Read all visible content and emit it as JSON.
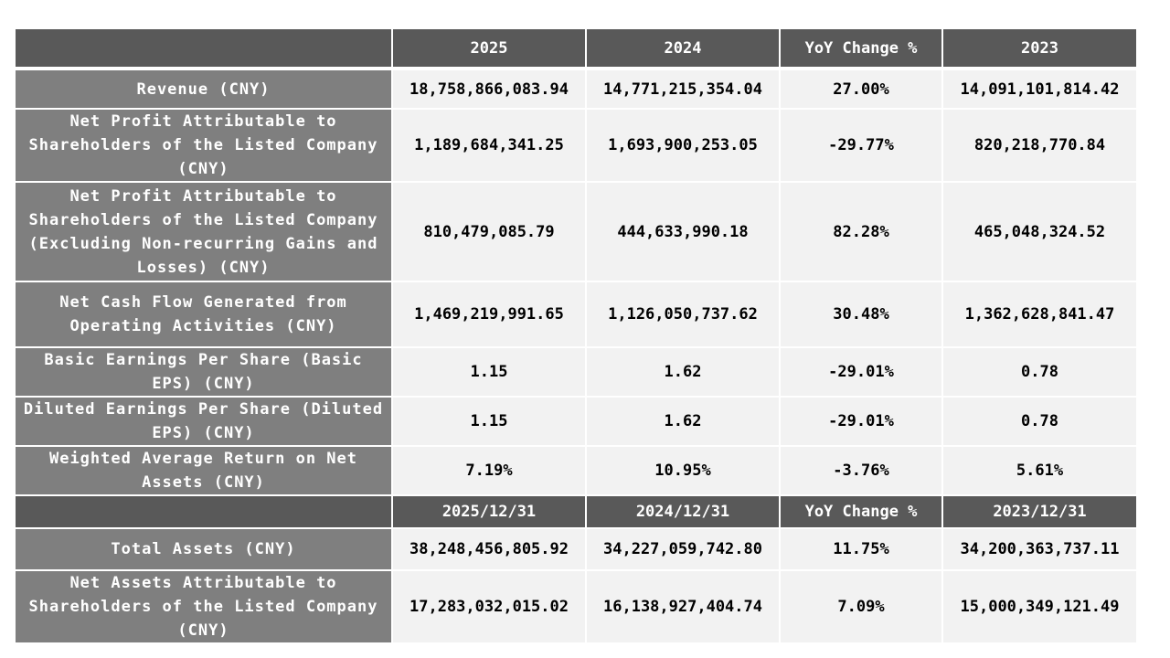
{
  "table": {
    "header": [
      "2025",
      "2024",
      "YoY Change %",
      "2023"
    ],
    "rows": [
      [
        "Revenue (CNY)",
        "18,758,866,083.94",
        "14,771,215,354.04",
        "27.00%",
        "14,091,101,814.42"
      ],
      [
        "Net Profit Attributable to Shareholders of the Listed Company (CNY)",
        "1,189,684,341.25",
        "1,693,900,253.05",
        "-29.77%",
        "820,218,770.84"
      ],
      [
        "Net Profit Attributable to Shareholders of the Listed Company (Excluding Non-recurring Gains and Losses) (CNY)",
        "810,479,085.79",
        "444,633,990.18",
        "82.28%",
        "465,048,324.52"
      ],
      [
        "Net Cash Flow Generated from Operating Activities (CNY)",
        "1,469,219,991.65",
        "1,126,050,737.62",
        "30.48%",
        "1,362,628,841.47"
      ],
      [
        "Basic Earnings Per Share (Basic EPS) (CNY)",
        "1.15",
        "1.62",
        "-29.01%",
        "0.78"
      ],
      [
        "Diluted Earnings Per Share (Diluted EPS) (CNY)",
        "1.15",
        "1.62",
        "-29.01%",
        "0.78"
      ],
      [
        "Weighted Average Return on Net Assets (CNY)",
        "7.19%",
        "10.95%",
        "-3.76%",
        "5.61%"
      ]
    ],
    "subheader": [
      "2025/12/31",
      "2024/12/31",
      "YoY Change %",
      "2023/12/31"
    ],
    "subrows": [
      [
        "Total Assets (CNY)",
        "38,248,456,805.92",
        "34,227,059,742.80",
        "11.75%",
        "34,200,363,737.11"
      ],
      [
        "Net Assets Attributable to Shareholders of the Listed Company (CNY)",
        "17,283,032,015.02",
        "16,138,927,404.74",
        "7.09%",
        "15,000,349,121.49"
      ]
    ]
  }
}
